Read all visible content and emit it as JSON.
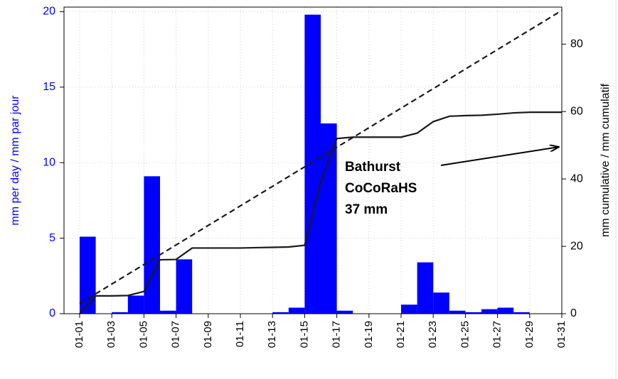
{
  "chart_data": {
    "type": "bar",
    "categories": [
      "01-01",
      null,
      "01-03",
      null,
      "01-05",
      null,
      "01-07",
      null,
      "01-09",
      null,
      "01-11",
      null,
      "01-13",
      null,
      "01-15",
      null,
      "01-17",
      null,
      "01-19",
      null,
      "01-21",
      null,
      "01-23",
      null,
      "01-25",
      null,
      "01-27",
      null,
      "01-29",
      null,
      "01-31"
    ],
    "series": [
      {
        "type": "bar",
        "color": "#0000ff",
        "values": [
          5.1,
          0,
          0.1,
          1.2,
          9.1,
          0.2,
          3.6,
          0,
          0,
          0,
          0,
          0,
          0.1,
          0.4,
          19.8,
          12.6,
          0.2,
          0,
          0,
          0,
          0.6,
          3.4,
          1.4,
          0.2,
          0.1,
          0.3,
          0.4,
          0.1,
          0,
          0,
          0
        ]
      },
      {
        "type": "line",
        "axis": "y2",
        "color": "#1a1a1a",
        "values": [
          0,
          5.3,
          5.3,
          5.4,
          6.6,
          16,
          16.1,
          19.5,
          19.5,
          19.5,
          19.5,
          19.6,
          19.7,
          19.8,
          20.3,
          39,
          52,
          52.4,
          52.4,
          52.4,
          52.4,
          53.6,
          57,
          58.6,
          58.8,
          58.9,
          59.2,
          59.6,
          59.8,
          59.8,
          59.8
        ]
      },
      {
        "type": "line",
        "axis": "y2",
        "dashed": true,
        "color": "#1a1a1a",
        "values": [
          3,
          5.9,
          8.8,
          11.7,
          14.6,
          17.5,
          20.4,
          23.3,
          26.2,
          29.1,
          32,
          34.9,
          37.8,
          40.7,
          43.6,
          46.5,
          49.4,
          52.3,
          55.2,
          58.1,
          61,
          63.9,
          66.8,
          69.7,
          72.6,
          75.5,
          78.4,
          81.3,
          84.2,
          87.1,
          90
        ]
      }
    ],
    "ylabel": "mm per day / mm par jour",
    "y2label": "mm cumulative / mm cumulatif",
    "ylim": [
      0,
      20.3
    ],
    "yticks": [
      0,
      5,
      10,
      15,
      20
    ],
    "y2lim": [
      0,
      91
    ],
    "y2ticks": [
      0,
      20,
      40,
      60,
      80
    ],
    "grid": true,
    "annotation": [
      "Bathurst",
      "CoCoRaHS",
      "37 mm"
    ]
  }
}
